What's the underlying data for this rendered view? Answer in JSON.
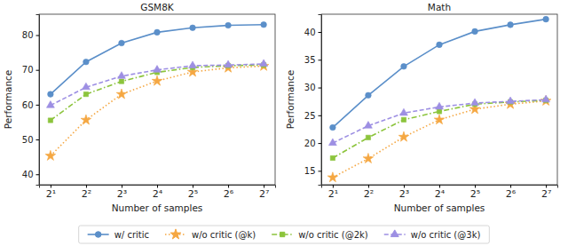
{
  "chart_data": [
    {
      "type": "line",
      "title": "GSM8K",
      "x_label": "Number of samples",
      "y_label": "Performance",
      "log": "x",
      "grid": false,
      "legend": "bottom",
      "x": [
        2,
        4,
        8,
        16,
        32,
        64,
        128
      ],
      "xlim": [
        1.6,
        160
      ],
      "xticks": [
        {
          "value": 2,
          "label": "2¹"
        },
        {
          "value": 4,
          "label": "2²"
        },
        {
          "value": 8,
          "label": "2³"
        },
        {
          "value": 16,
          "label": "2⁴"
        },
        {
          "value": 32,
          "label": "2⁵"
        },
        {
          "value": 64,
          "label": "2⁶"
        },
        {
          "value": 128,
          "label": "2⁷"
        }
      ],
      "ylim": [
        37,
        86
      ],
      "yticks": [
        40,
        50,
        60,
        70,
        80
      ],
      "series": [
        {
          "name": "w/ critic",
          "color": "#5b8fc9",
          "marker": "circle",
          "line_style": "solid",
          "values": [
            63.0,
            72.3,
            77.7,
            80.8,
            82.1,
            82.8,
            83.0
          ]
        },
        {
          "name": "w/o critic (@k)",
          "color": "#f5a742",
          "marker": "star",
          "line_style": "dotted",
          "values": [
            45.3,
            55.6,
            63.0,
            66.8,
            69.4,
            70.6,
            71.1
          ]
        },
        {
          "name": "w/o critic (@2k)",
          "color": "#8cc43c",
          "marker": "square",
          "line_style": "dashdot",
          "values": [
            55.5,
            63.0,
            66.7,
            69.3,
            70.7,
            71.2,
            71.4
          ]
        },
        {
          "name": "w/o critic (@3k)",
          "color": "#9d8fe3",
          "marker": "triangle",
          "line_style": "dashed",
          "values": [
            59.8,
            65.0,
            68.2,
            70.0,
            71.2,
            71.4,
            71.7
          ]
        }
      ]
    },
    {
      "type": "line",
      "title": "Math",
      "x_label": "Number of samples",
      "y_label": "Performance",
      "log": "x",
      "grid": false,
      "x": [
        2,
        4,
        8,
        16,
        32,
        64,
        128
      ],
      "xlim": [
        1.6,
        160
      ],
      "xticks": [
        {
          "value": 2,
          "label": "2¹"
        },
        {
          "value": 4,
          "label": "2²"
        },
        {
          "value": 8,
          "label": "2³"
        },
        {
          "value": 16,
          "label": "2⁴"
        },
        {
          "value": 32,
          "label": "2⁵"
        },
        {
          "value": 64,
          "label": "2⁶"
        },
        {
          "value": 128,
          "label": "2⁷"
        }
      ],
      "ylim": [
        12.5,
        43.2
      ],
      "yticks": [
        15,
        20,
        25,
        30,
        35,
        40
      ],
      "series": [
        {
          "name": "w/ critic",
          "color": "#5b8fc9",
          "marker": "circle",
          "line_style": "solid",
          "values": [
            22.8,
            28.6,
            33.8,
            37.7,
            40.1,
            41.3,
            42.3
          ]
        },
        {
          "name": "w/o critic (@k)",
          "color": "#f5a742",
          "marker": "star",
          "line_style": "dotted",
          "values": [
            13.8,
            17.2,
            21.1,
            24.2,
            26.1,
            27.0,
            27.6
          ]
        },
        {
          "name": "w/o critic (@2k)",
          "color": "#8cc43c",
          "marker": "square",
          "line_style": "dashdot",
          "values": [
            17.3,
            21.0,
            24.2,
            25.7,
            27.0,
            27.4,
            27.7
          ]
        },
        {
          "name": "w/o critic (@3k)",
          "color": "#9d8fe3",
          "marker": "triangle",
          "line_style": "dashed",
          "values": [
            20.0,
            23.1,
            25.4,
            26.5,
            27.2,
            27.5,
            27.8
          ]
        }
      ]
    }
  ]
}
